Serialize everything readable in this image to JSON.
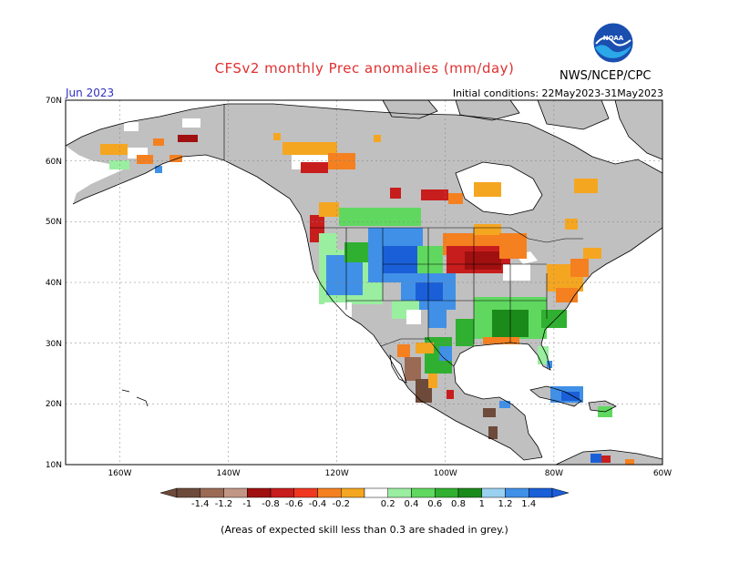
{
  "header": {
    "title": "CFSv2 monthly Prec anomalies (mm/day)",
    "agency": "NWS/NCEP/CPC",
    "logo_text": "NOAA",
    "month": "Jun 2023",
    "initial_conditions": "Initial conditions: 22May2023-31May2023"
  },
  "axes": {
    "latitude_labels": [
      "70N",
      "60N",
      "50N",
      "40N",
      "30N",
      "20N",
      "10N"
    ],
    "longitude_labels": [
      "160W",
      "140W",
      "120W",
      "100W",
      "80W",
      "60W"
    ],
    "lat_range": [
      10,
      70
    ],
    "lon_range": [
      -170,
      -60
    ]
  },
  "colorbar": {
    "tick_labels": [
      "-1.4",
      "-1.2",
      "-1",
      "-0.8",
      "-0.6",
      "-0.4",
      "-0.2",
      "0.2",
      "0.4",
      "0.6",
      "0.8",
      "1",
      "1.2",
      "1.4"
    ],
    "colors": [
      "#6e4a3a",
      "#9a6a55",
      "#c29684",
      "#a01010",
      "#c81d1d",
      "#f03820",
      "#f58020",
      "#f5a620",
      "#ffffff",
      "#9aeea0",
      "#60d860",
      "#30b030",
      "#1a8a1a",
      "#9ad0f0",
      "#4090e8",
      "#1a5fd8"
    ]
  },
  "footnote": "(Areas of expected skill less than 0.3 are shaded in grey.)",
  "colors": {
    "land_unskilled": "#c0c0c0",
    "water": "#ffffff",
    "title": "#e03030",
    "month": "#3030c0"
  }
}
